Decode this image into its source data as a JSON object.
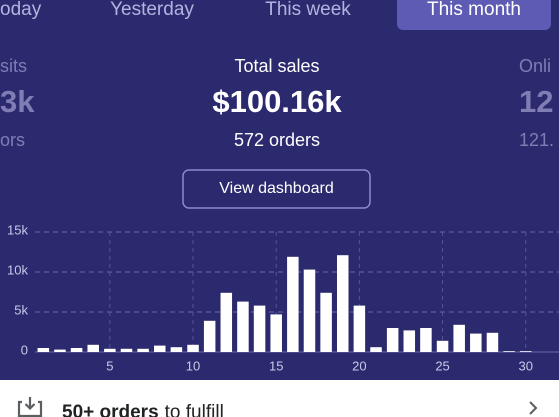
{
  "tabs": [
    "oday",
    "Yesterday",
    "This week",
    "This month"
  ],
  "selected_tab": 3,
  "stats": {
    "left": {
      "title": "sits",
      "value": "3k",
      "sub": "ors"
    },
    "center": {
      "title": "Total sales",
      "value": "$100.16k",
      "sub": "572 orders"
    },
    "right": {
      "title": "Onli",
      "value": "12",
      "sub": "121."
    }
  },
  "button": "View dashboard",
  "chart_data": {
    "type": "bar",
    "x": [
      1,
      2,
      3,
      4,
      5,
      6,
      7,
      8,
      9,
      10,
      11,
      12,
      13,
      14,
      15,
      16,
      17,
      18,
      19,
      20,
      21,
      22,
      23,
      24,
      25,
      26,
      27,
      28,
      29,
      30
    ],
    "values": [
      500,
      300,
      500,
      900,
      400,
      400,
      400,
      800,
      600,
      900,
      3900,
      7400,
      6300,
      5800,
      4700,
      11900,
      10300,
      7400,
      12100,
      5800,
      600,
      3000,
      2700,
      3000,
      1400,
      3400,
      2300,
      2400,
      100,
      100
    ],
    "color": "#ffffff",
    "xlim": [
      0.5,
      32
    ],
    "xticks": [
      5,
      10,
      15,
      20,
      25,
      30
    ],
    "ylim": [
      0,
      15000
    ],
    "yticks": [
      0,
      {
        "value": 5000,
        "label": "5k"
      },
      {
        "value": 10000,
        "label": "10k"
      },
      {
        "value": 15000,
        "label": "15k"
      }
    ],
    "grid": true
  },
  "footer": {
    "count": "50+ orders",
    "text": "to fulfill"
  }
}
